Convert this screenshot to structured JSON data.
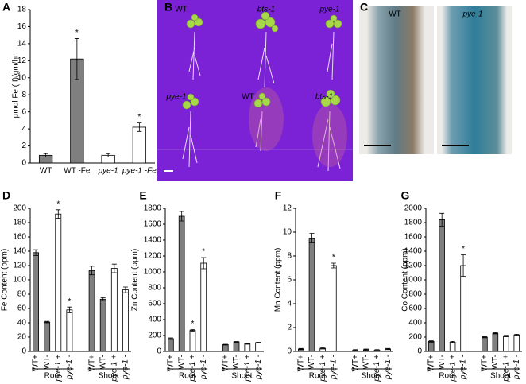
{
  "chart_data": [
    {
      "type": "bar",
      "panel": "A",
      "y_label": "μmol Fe (II)/gm/hr",
      "categories": [
        "WT",
        "WT -Fe",
        "pye-1",
        "pye-1 -Fe"
      ],
      "values": [
        0.9,
        12.2,
        0.9,
        4.2
      ],
      "errors": [
        0.2,
        2.4,
        0.2,
        0.5
      ],
      "colors": [
        "#7f7f7f",
        "#7f7f7f",
        "#ffffff",
        "#ffffff"
      ],
      "asterisks": [
        null,
        "*",
        null,
        "*"
      ],
      "ylim": [
        0,
        18
      ],
      "yticks": [
        0,
        2,
        4,
        6,
        8,
        10,
        12,
        14,
        16,
        18
      ]
    },
    {
      "type": "bar",
      "panel": "D",
      "y_label": "Fe Content (ppm)",
      "groups": [
        "Root",
        "Shoot"
      ],
      "categories": [
        "WT+",
        "WT-",
        "pye-1 +",
        "pye-1 -",
        "WT+",
        "WT-",
        "pye-1 +",
        "pye-1 -"
      ],
      "values": [
        138,
        41,
        192,
        58,
        113,
        73,
        116,
        86
      ],
      "errors": [
        4,
        1,
        6,
        4,
        6,
        2,
        6,
        4
      ],
      "colors": [
        "#7f7f7f",
        "#7f7f7f",
        "#ffffff",
        "#ffffff",
        "#7f7f7f",
        "#7f7f7f",
        "#ffffff",
        "#ffffff"
      ],
      "asterisks": [
        null,
        null,
        "*",
        "*",
        null,
        null,
        null,
        null
      ],
      "ylim": [
        0,
        200
      ],
      "yticks": [
        0,
        20,
        40,
        60,
        80,
        100,
        120,
        140,
        160,
        180,
        200
      ]
    },
    {
      "type": "bar",
      "panel": "E",
      "y_label": "Zn Content (ppm)",
      "groups": [
        "Root",
        "Shoot"
      ],
      "categories": [
        "WT+",
        "WT-",
        "pye-1 +",
        "pye-1 -",
        "WT+",
        "WT-",
        "pye-1 +",
        "pye-1 -"
      ],
      "values": [
        160,
        1700,
        265,
        1110,
        85,
        120,
        95,
        110
      ],
      "errors": [
        10,
        60,
        10,
        70,
        5,
        5,
        5,
        5
      ],
      "colors": [
        "#7f7f7f",
        "#7f7f7f",
        "#ffffff",
        "#ffffff",
        "#7f7f7f",
        "#7f7f7f",
        "#ffffff",
        "#ffffff"
      ],
      "asterisks": [
        null,
        null,
        "*",
        "*",
        null,
        null,
        null,
        null
      ],
      "ylim": [
        0,
        1800
      ],
      "yticks": [
        0,
        200,
        400,
        600,
        800,
        1000,
        1200,
        1400,
        1600,
        1800
      ]
    },
    {
      "type": "bar",
      "panel": "F",
      "y_label": "Mn Content (ppm)",
      "groups": [
        "Root",
        "Shoot"
      ],
      "categories": [
        "WT+",
        "WT-",
        "pye-1 +",
        "pye-1 -",
        "WT+",
        "WT-",
        "pye-1 +",
        "pye-1 -"
      ],
      "values": [
        0.2,
        9.5,
        0.25,
        7.2,
        0.1,
        0.15,
        0.1,
        0.2
      ],
      "errors": [
        0.05,
        0.4,
        0.05,
        0.2,
        0.05,
        0.05,
        0.05,
        0.05
      ],
      "colors": [
        "#7f7f7f",
        "#7f7f7f",
        "#ffffff",
        "#ffffff",
        "#7f7f7f",
        "#7f7f7f",
        "#ffffff",
        "#ffffff"
      ],
      "asterisks": [
        null,
        null,
        null,
        "*",
        null,
        null,
        null,
        null
      ],
      "ylim": [
        0,
        12
      ],
      "yticks": [
        0,
        2,
        4,
        6,
        8,
        10,
        12
      ]
    },
    {
      "type": "bar",
      "panel": "G",
      "y_label": "Co Content (ppm)",
      "groups": [
        "Root",
        "Shoot"
      ],
      "categories": [
        "WT+",
        "WT-",
        "pye-1 +",
        "pye-1 -",
        "WT+",
        "WT-",
        "pye-1 +",
        "pye-1 -"
      ],
      "values": [
        140,
        1840,
        130,
        1200,
        200,
        255,
        215,
        230
      ],
      "errors": [
        10,
        90,
        10,
        150,
        10,
        10,
        10,
        10
      ],
      "colors": [
        "#7f7f7f",
        "#7f7f7f",
        "#ffffff",
        "#ffffff",
        "#7f7f7f",
        "#7f7f7f",
        "#ffffff",
        "#ffffff"
      ],
      "asterisks": [
        null,
        null,
        null,
        "*",
        null,
        null,
        null,
        null
      ],
      "ylim": [
        0,
        2000
      ],
      "yticks": [
        0,
        200,
        400,
        600,
        800,
        1000,
        1200,
        1400,
        1600,
        1800,
        2000
      ]
    }
  ],
  "images": [
    {
      "panel": "B",
      "labels": [
        "WT",
        "bts-1",
        "pye-1",
        "pye-1",
        "WT",
        "bts-1"
      ]
    },
    {
      "panel": "C",
      "labels": [
        "WT",
        "pye-1"
      ]
    }
  ]
}
